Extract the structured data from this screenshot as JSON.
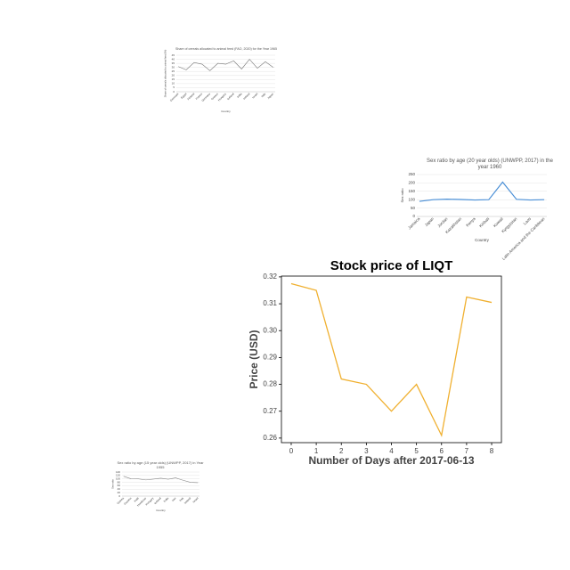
{
  "chart_data": [
    {
      "type": "line",
      "title": "Share of cereals allocated to animal feed (FAO, 2020) for the Year 1965",
      "x_label": "Country",
      "y_label": "Share of cereals allocated to animal feed (%)",
      "categories": [
        "Denmark",
        "Egypt",
        "Finland",
        "France",
        "Germany",
        "Greece",
        "Hungary",
        "Iceland",
        "India",
        "Ireland",
        "Israel",
        "Italy",
        "Japan"
      ],
      "values": [
        31,
        27,
        36,
        34,
        26,
        35,
        34,
        38,
        28,
        40,
        29,
        37,
        30
      ],
      "color": "#777777",
      "ylim": [
        0,
        45
      ],
      "yticks": [
        0,
        5,
        10,
        15,
        20,
        25,
        30,
        35,
        40,
        45
      ],
      "grid": true
    },
    {
      "type": "line",
      "title": "Sex ratio by age (20 year olds) (UNWPP, 2017) in the year 1960",
      "x_label": "Country",
      "y_label": "Sex ratio",
      "categories": [
        "Jamaica",
        "Japan",
        "Jordan",
        "Kazakhstan",
        "Kenya",
        "Kiribati",
        "Kuwait",
        "Kyrgyzstan",
        "Laos",
        "Latin America and the Caribbean"
      ],
      "values": [
        90,
        100,
        103,
        101,
        98,
        100,
        205,
        102,
        98,
        100
      ],
      "color": "#4a8fd6",
      "ylim": [
        0,
        250
      ],
      "yticks": [
        0,
        50,
        100,
        150,
        200,
        250
      ],
      "grid": true
    },
    {
      "type": "line",
      "title": "Stock price of LIQT",
      "x_label": "Number of Days after 2017-06-13",
      "y_label": "Price (USD)",
      "x": [
        0,
        1,
        2,
        3,
        4,
        5,
        6,
        7,
        8
      ],
      "values": [
        0.3175,
        0.315,
        0.282,
        0.28,
        0.27,
        0.28,
        0.261,
        0.3125,
        0.3105
      ],
      "color": "#f0b030",
      "xlim": [
        -0.39,
        8.39
      ],
      "xticks": [
        0,
        1,
        2,
        3,
        4,
        5,
        6,
        7,
        8
      ],
      "ylim": [
        0.2583,
        0.3203
      ],
      "yticks": [
        0.26,
        0.27,
        0.28,
        0.29,
        {
          "value": 0.3,
          "label": "0.30"
        },
        0.31,
        0.32
      ],
      "grid": false
    },
    {
      "type": "line",
      "title": "Sex ratio by age (15 year olds) (UNWPP, 2017) in Year 1955",
      "x_label": "Country",
      "y_label": "Sex ratio",
      "categories": [
        "Guinea",
        "Guyana",
        "Haiti",
        "Honduras",
        "Hungary",
        "Iceland",
        "India",
        "Iran",
        "Iraq",
        "Ireland",
        "Israel"
      ],
      "values": [
        115,
        101,
        100,
        94,
        99,
        104,
        98,
        106,
        92,
        80,
        78
      ],
      "color": "#888888",
      "ylim": [
        0,
        140
      ],
      "yticks": [
        0,
        20,
        40,
        60,
        80,
        100,
        120,
        140
      ],
      "grid": true
    }
  ]
}
